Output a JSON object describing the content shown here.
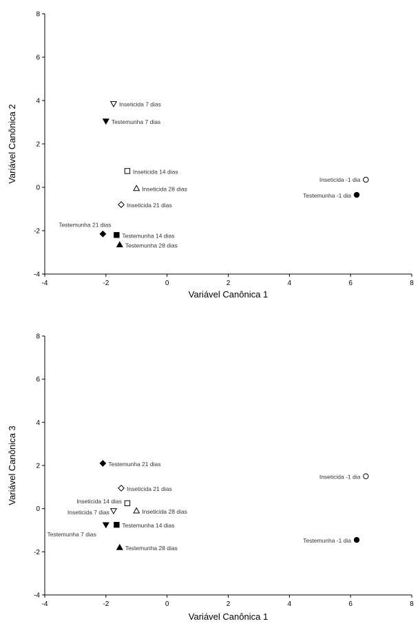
{
  "chart_data": [
    {
      "type": "scatter",
      "xlabel": "Variável Canônica 1",
      "ylabel": "Variável Canônica 2",
      "xlim": [
        -4,
        8
      ],
      "ylim": [
        -4,
        8
      ],
      "xticks": [
        "-4",
        "-2",
        "0",
        "2",
        "4",
        "6",
        "8"
      ],
      "yticks": [
        "-4",
        "-2",
        "0",
        "2",
        "4",
        "6",
        "8"
      ],
      "grid": false,
      "points": [
        {
          "label": "Inseticida 7 dias",
          "x": -1.75,
          "y": 3.85,
          "marker": "tri-down-open"
        },
        {
          "label": "Testemunha 7 dias",
          "x": -2.0,
          "y": 3.05,
          "marker": "tri-down-filled"
        },
        {
          "label": "Inseticida 14 dias",
          "x": -1.3,
          "y": 0.75,
          "marker": "square-open"
        },
        {
          "label": "Inseticida 28 dias",
          "x": -1.0,
          "y": -0.05,
          "marker": "tri-up-open"
        },
        {
          "label": "Inseticida 21 dias",
          "x": -1.5,
          "y": -0.8,
          "marker": "diamond-open"
        },
        {
          "label": "Testemunha 21 dias",
          "x": -2.1,
          "y": -2.15,
          "marker": "diamond-filled"
        },
        {
          "label": "Testemunha 14 dias",
          "x": -1.65,
          "y": -2.2,
          "marker": "square-filled"
        },
        {
          "label": "Testemunha 28 dias",
          "x": -1.55,
          "y": -2.65,
          "marker": "tri-up-filled"
        },
        {
          "label": "Inseticida -1 dia",
          "x": 6.5,
          "y": 0.35,
          "marker": "circle-open"
        },
        {
          "label": "Testemunha -1 dia",
          "x": 6.2,
          "y": -0.35,
          "marker": "circle-filled"
        }
      ]
    },
    {
      "type": "scatter",
      "xlabel": "Variável Canônica 1",
      "ylabel": "Variável Canônica 3",
      "xlim": [
        -4,
        8
      ],
      "ylim": [
        -4,
        8
      ],
      "xticks": [
        "-4",
        "-2",
        "0",
        "2",
        "4",
        "6",
        "8"
      ],
      "yticks": [
        "-4",
        "-2",
        "0",
        "2",
        "4",
        "6",
        "8"
      ],
      "grid": false,
      "points": [
        {
          "label": "Testemunha 21 dias",
          "x": -2.1,
          "y": 2.1,
          "marker": "diamond-filled"
        },
        {
          "label": "Inseticida 21 dias",
          "x": -1.5,
          "y": 0.95,
          "marker": "diamond-open"
        },
        {
          "label": "Inseticida 14 dias",
          "x": -1.3,
          "y": 0.25,
          "marker": "square-open"
        },
        {
          "label": "Inseticida 7 dias",
          "x": -1.75,
          "y": -0.1,
          "marker": "tri-down-open"
        },
        {
          "label": "Inseticida 28 dias",
          "x": -1.0,
          "y": -0.1,
          "marker": "tri-up-open"
        },
        {
          "label": "Testemunha 7 dias",
          "x": -2.0,
          "y": -0.75,
          "marker": "tri-down-filled"
        },
        {
          "label": "Testemunha 14 dias",
          "x": -1.65,
          "y": -0.75,
          "marker": "square-filled"
        },
        {
          "label": "Testemunha 28 dias",
          "x": -1.55,
          "y": -1.8,
          "marker": "tri-up-filled"
        },
        {
          "label": "Inseticida -1 dia",
          "x": 6.5,
          "y": 1.5,
          "marker": "circle-open"
        },
        {
          "label": "Testemunha -1 dia",
          "x": 6.2,
          "y": -1.45,
          "marker": "circle-filled"
        }
      ]
    }
  ]
}
